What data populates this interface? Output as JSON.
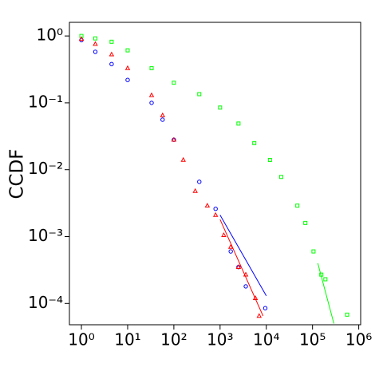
{
  "chart_data": {
    "type": "scatter",
    "y_label": "CCDF",
    "xscale": "log",
    "yscale": "log",
    "xlim": [
      0.55,
      1100000
    ],
    "ylim": [
      4.8e-05,
      1.6
    ],
    "xticks": [
      {
        "value": 1,
        "label": "10⁰"
      },
      {
        "value": 10,
        "label": "10¹"
      },
      {
        "value": 100,
        "label": "10²"
      },
      {
        "value": 1000,
        "label": "10³"
      },
      {
        "value": 10000,
        "label": "10⁴"
      },
      {
        "value": 100000,
        "label": "10⁵"
      },
      {
        "value": 1000000,
        "label": "10⁶"
      }
    ],
    "yticks": [
      {
        "value": 1,
        "label": "10⁰"
      },
      {
        "value": 0.1,
        "label": "10⁻¹"
      },
      {
        "value": 0.01,
        "label": "10⁻²"
      },
      {
        "value": 0.001,
        "label": "10⁻³"
      },
      {
        "value": 0.0001,
        "label": "10⁻⁴"
      }
    ],
    "series": [
      {
        "color": "#00ff00",
        "marker": "square",
        "x": [
          1,
          2,
          4.5,
          10,
          33,
          100,
          355,
          1000,
          2500,
          5500,
          12000,
          21000,
          47000,
          70000,
          105000,
          155000,
          190000,
          560000
        ],
        "values": [
          1.0,
          0.92,
          0.82,
          0.61,
          0.33,
          0.2,
          0.135,
          0.085,
          0.049,
          0.025,
          0.014,
          0.0078,
          0.0029,
          0.0016,
          0.0006,
          0.00027,
          0.00023,
          6.8e-05
        ]
      },
      {
        "color": "#0000ff",
        "marker": "circle",
        "x": [
          1,
          2,
          4.5,
          10,
          33,
          57,
          100,
          355,
          800,
          1700,
          2500,
          3600,
          9500
        ],
        "values": [
          0.87,
          0.58,
          0.38,
          0.22,
          0.1,
          0.056,
          0.028,
          0.0066,
          0.0026,
          0.0006,
          0.00035,
          0.00018,
          8.5e-05
        ]
      },
      {
        "color": "#ff0000",
        "marker": "triangle",
        "x": [
          1,
          2,
          4.5,
          10,
          33,
          57,
          100,
          160,
          290,
          530,
          800,
          1200,
          1700,
          2500,
          3600,
          5800,
          7000
        ],
        "values": [
          0.9,
          0.76,
          0.53,
          0.33,
          0.13,
          0.065,
          0.028,
          0.014,
          0.0048,
          0.0029,
          0.0021,
          0.00105,
          0.0007,
          0.00035,
          0.00027,
          0.00012,
          6.5e-05
        ]
      },
      {
        "color": "#0000ff",
        "marker": "none",
        "x": [
          1000,
          10000
        ],
        "values": [
          0.0021,
          0.00013
        ]
      },
      {
        "color": "#ff0000",
        "marker": "none",
        "x": [
          1000,
          8500
        ],
        "values": [
          0.0018,
          6.5e-05
        ]
      },
      {
        "color": "#00ff00",
        "marker": "none",
        "x": [
          130000,
          290000
        ],
        "values": [
          0.0004,
          5e-05
        ]
      }
    ]
  }
}
